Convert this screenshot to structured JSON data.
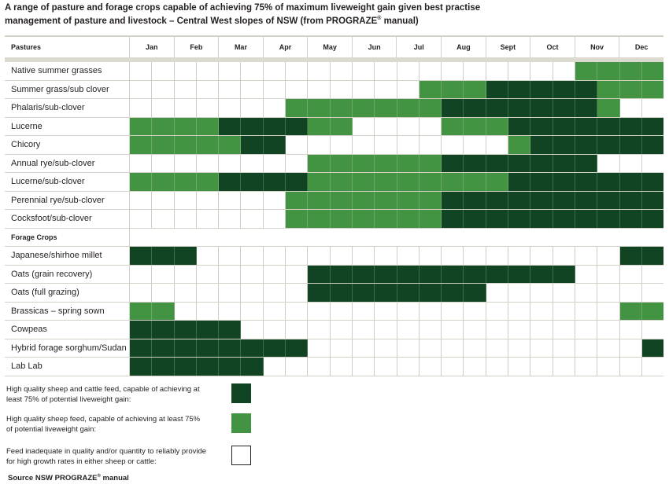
{
  "chart_data": {
    "type": "heatmap",
    "title_line1": "A range of pasture and forage crops capable of achieving 75% of maximum liveweight gain given best practise",
    "title_line2_pre": "management of pasture and livestock – Central West slopes of NSW (from PROGRAZE",
    "title_line2_sup": "®",
    "title_line2_post": " manual)",
    "row_header": "Pastures",
    "months": [
      "Jan",
      "Feb",
      "Mar",
      "Apr",
      "May",
      "Jun",
      "Jul",
      "Aug",
      "Sept",
      "Oct",
      "Nov",
      "Dec"
    ],
    "columns_per_month": 2,
    "levels": {
      "D": "High quality sheep and cattle feed",
      "L": "High quality sheep feed",
      "W": "Feed inadequate"
    },
    "colors": {
      "D": "#114423",
      "L": "#429442",
      "W": "#ffffff"
    },
    "rows": [
      {
        "label": "Native summer grasses",
        "values": "WWWWWWWWWWWWWWWWWWWWLLLL"
      },
      {
        "label": "Summer grass/sub clover",
        "values": "WWWWWWWWWWWWWLLLDDDDDLLL"
      },
      {
        "label": "Phalaris/sub-clover",
        "values": "WWWWWWWLLLLLLLDDDDDDDLWW"
      },
      {
        "label": "Lucerne",
        "values": "LLLLDDDDLLWWWWLLLDDDDDDD"
      },
      {
        "label": "Chicory",
        "values": "LLLLLDDWWWWWWWWWWLDDDDDD"
      },
      {
        "label": "Annual rye/sub-clover",
        "values": "WWWWWWWWLLLLLLDDDDDDDWWW"
      },
      {
        "label": "Lucerne/sub-clover",
        "values": "LLLLDDDDLLLLLLLLLDDDDDDD"
      },
      {
        "label": "Perennial rye/sub-clover",
        "values": "WWWWWWWLLLLLLLDDDDDDDDDD"
      },
      {
        "label": "Cocksfoot/sub-clover",
        "values": "WWWWWWWLLLLLLLDDDDDDDDDD"
      },
      {
        "label": "Forage Crops",
        "section": true
      },
      {
        "label": "Japanese/shirhoe millet",
        "values": "DDDWWWWWWWWWWWWWWWWWWWDD"
      },
      {
        "label": "Oats (grain recovery)",
        "values": "WWWWWWWWDDDDDDDDDDDDWWWW"
      },
      {
        "label": "Oats (full grazing)",
        "values": "WWWWWWWWDDDDDDDDWWWWWWWW"
      },
      {
        "label": "Brassicas – spring sown",
        "values": "LLWWWWWWWWWWWWWWWWWWWWLL"
      },
      {
        "label": "Cowpeas",
        "values": "DDDDDWWWWWWWWWWWWWWWWWWW"
      },
      {
        "label": "Hybrid forage sorghum/Sudan",
        "values": "DDDDDDDDWWWWWWWWWWWWWWWD"
      },
      {
        "label": "Lab Lab",
        "values": "DDDDDDWWWWWWWWWWWWWWWWWW"
      }
    ],
    "legend": [
      {
        "key": "D",
        "line1": "High quality sheep and cattle feed, capable of achieving at",
        "line2": "least 75% of potential liveweight gain:"
      },
      {
        "key": "L",
        "line1": "High quality sheep feed, capable of achieving at least 75%",
        "line2": "of potential liveweight gain:"
      },
      {
        "key": "W",
        "line1": "Feed inadequate in quality and/or quantity to reliably provide",
        "line2": "for high growth rates in either sheep or cattle:"
      }
    ],
    "source_pre": "Source NSW PROGRAZE",
    "source_sup": "®",
    "source_post": " manual"
  }
}
